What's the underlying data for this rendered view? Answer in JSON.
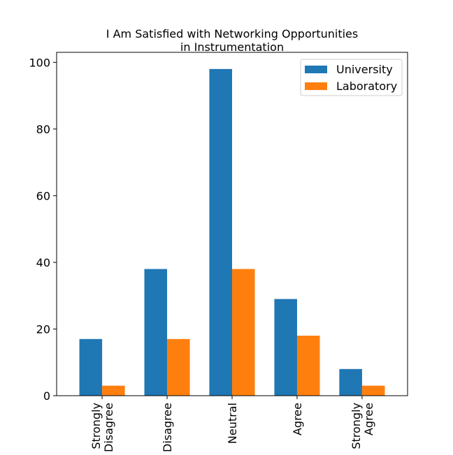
{
  "chart_data": {
    "type": "bar",
    "title_lines": [
      "I Am Satisfied with Networking Opportunities",
      "in Instrumentation"
    ],
    "categories": [
      [
        "Strongly",
        "Disagree"
      ],
      [
        "Disagree"
      ],
      [
        "Neutral"
      ],
      [
        "Agree"
      ],
      [
        "Strongly",
        "Agree"
      ]
    ],
    "series": [
      {
        "name": "University",
        "color": "#1f77b4",
        "values": [
          17,
          38,
          98,
          29,
          8
        ]
      },
      {
        "name": "Laboratory",
        "color": "#ff7f0e",
        "values": [
          3,
          17,
          38,
          18,
          3
        ]
      }
    ],
    "ylim": [
      0,
      103
    ],
    "yticks": [
      0,
      20,
      40,
      60,
      80,
      100
    ],
    "legend_position": "top-right",
    "grid": false
  }
}
